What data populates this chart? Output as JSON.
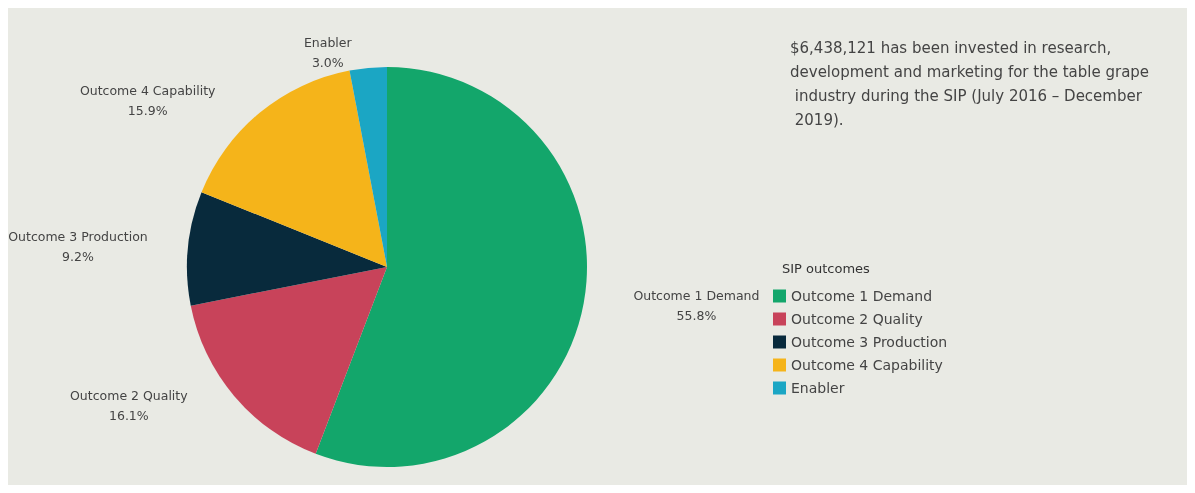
{
  "chart_data": {
    "type": "pie",
    "legend_title": "SIP outcomes",
    "legend": "right",
    "categories": [
      "Outcome 1 Demand",
      "Outcome 2 Quality",
      "Outcome 3 Production",
      "Outcome 4 Capability",
      "Enabler"
    ],
    "values": [
      55.8,
      16.1,
      9.2,
      15.9,
      3.0
    ],
    "value_labels": [
      "55.8%",
      "16.1%",
      "9.2%",
      "15.9%",
      "3.0%"
    ],
    "colors": [
      "#13a66b",
      "#c8435a",
      "#082a3c",
      "#f5b41a",
      "#1ba6c4"
    ],
    "annotations": [
      "$6,438,121 has been invested in research, development and marketing for the table grape industry during the SIP (July 2016 – December 2019)."
    ]
  }
}
